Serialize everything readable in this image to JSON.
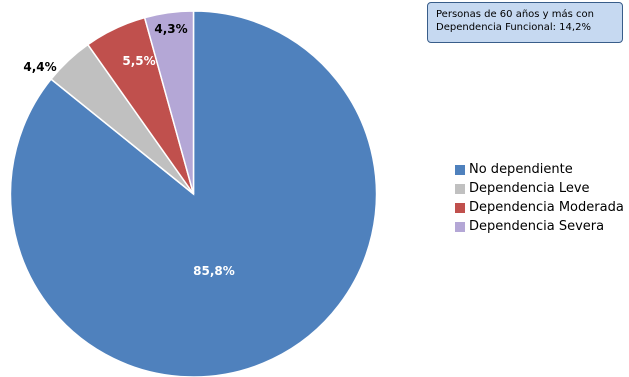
{
  "colors": {
    "no_dependiente": "#4f81bd",
    "leve": "#c0c0c0",
    "moderada": "#c0504d",
    "severa": "#b4a7d6"
  },
  "callout": {
    "line1": "Personas de 60 años y más con",
    "line2": "Dependencia Funcional: 14,2%"
  },
  "chart_data": {
    "type": "pie",
    "categories": [
      "No dependiente",
      "Dependencia Leve",
      "Dependencia Moderada",
      "Dependencia Severa"
    ],
    "values": [
      85.8,
      4.4,
      5.5,
      4.3
    ],
    "data_labels": [
      "85,8%",
      "4,4%",
      "5,5%",
      "4,3%"
    ],
    "legend_placement": "right",
    "start_angle_deg": 0,
    "direction": "clockwise"
  }
}
